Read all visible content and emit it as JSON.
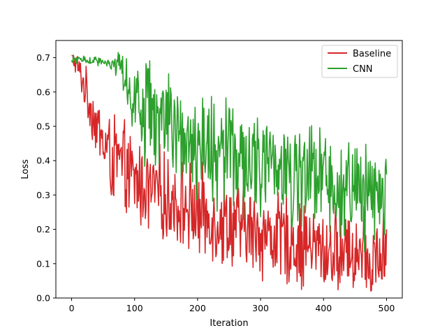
{
  "chart_data": {
    "type": "line",
    "title": "",
    "xlabel": "Iteration",
    "ylabel": "Loss",
    "xlim": [
      -25,
      525
    ],
    "ylim": [
      0,
      0.75
    ],
    "xticks": [
      0,
      100,
      200,
      300,
      400,
      500
    ],
    "yticks": [
      0.0,
      0.1,
      0.2,
      0.3,
      0.4,
      0.5,
      0.6,
      0.7
    ],
    "xtick_labels": [
      "0",
      "100",
      "200",
      "300",
      "400",
      "500"
    ],
    "ytick_labels": [
      "0.0",
      "0.1",
      "0.2",
      "0.3",
      "0.4",
      "0.5",
      "0.6",
      "0.7"
    ],
    "grid": false,
    "legend_position": "top-right",
    "legend": [
      "Baseline",
      "CNN"
    ],
    "series": [
      {
        "name": "Baseline",
        "color": "#d62728",
        "x": [
          0,
          10,
          20,
          30,
          40,
          50,
          60,
          70,
          80,
          90,
          100,
          110,
          120,
          130,
          140,
          150,
          160,
          170,
          180,
          190,
          200,
          210,
          220,
          230,
          240,
          250,
          260,
          270,
          280,
          290,
          300,
          310,
          320,
          330,
          340,
          350,
          360,
          370,
          380,
          390,
          400,
          410,
          420,
          430,
          440,
          450,
          460,
          470,
          480,
          490,
          500
        ],
        "y": [
          0.7,
          0.67,
          0.62,
          0.56,
          0.5,
          0.45,
          0.42,
          0.4,
          0.38,
          0.36,
          0.34,
          0.33,
          0.32,
          0.31,
          0.3,
          0.29,
          0.28,
          0.275,
          0.27,
          0.26,
          0.25,
          0.24,
          0.235,
          0.23,
          0.225,
          0.22,
          0.21,
          0.205,
          0.2,
          0.195,
          0.19,
          0.185,
          0.18,
          0.175,
          0.17,
          0.165,
          0.16,
          0.155,
          0.15,
          0.145,
          0.14,
          0.135,
          0.13,
          0.128,
          0.125,
          0.122,
          0.12,
          0.118,
          0.115,
          0.112,
          0.11
        ]
      },
      {
        "name": "CNN",
        "color": "#2ca02c",
        "x": [
          0,
          10,
          20,
          30,
          40,
          50,
          60,
          70,
          80,
          90,
          100,
          110,
          120,
          130,
          140,
          150,
          160,
          170,
          180,
          190,
          200,
          210,
          220,
          230,
          240,
          250,
          260,
          270,
          280,
          290,
          300,
          310,
          320,
          330,
          340,
          350,
          360,
          370,
          380,
          390,
          400,
          410,
          420,
          430,
          440,
          450,
          460,
          470,
          480,
          490,
          500
        ],
        "y": [
          0.69,
          0.695,
          0.695,
          0.69,
          0.69,
          0.685,
          0.68,
          0.67,
          0.65,
          0.62,
          0.59,
          0.56,
          0.54,
          0.52,
          0.5,
          0.49,
          0.48,
          0.47,
          0.46,
          0.45,
          0.44,
          0.435,
          0.43,
          0.425,
          0.42,
          0.415,
          0.41,
          0.4,
          0.395,
          0.39,
          0.385,
          0.38,
          0.375,
          0.37,
          0.365,
          0.36,
          0.355,
          0.35,
          0.345,
          0.34,
          0.335,
          0.33,
          0.325,
          0.32,
          0.318,
          0.315,
          0.312,
          0.31,
          0.308,
          0.305,
          0.3
        ]
      }
    ]
  }
}
